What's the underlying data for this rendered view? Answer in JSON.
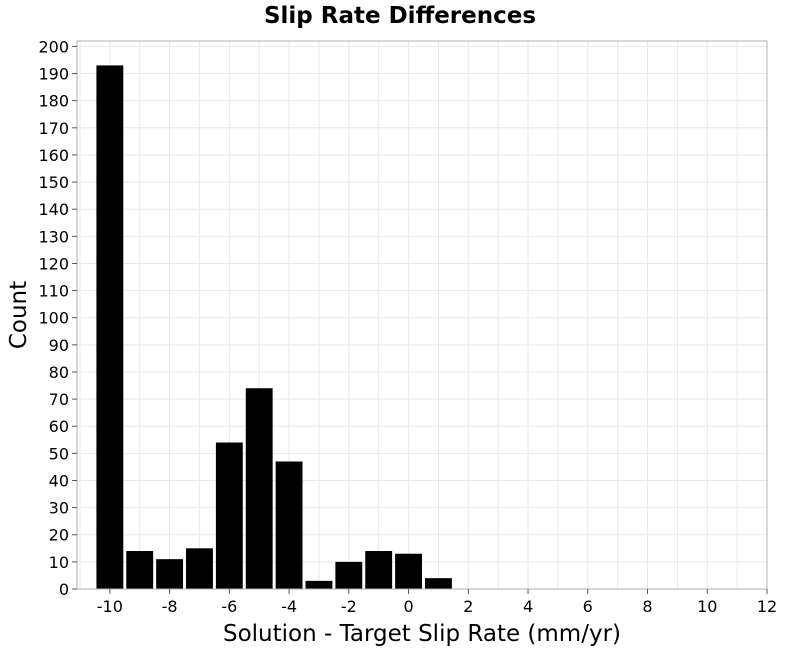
{
  "chart_data": {
    "type": "bar",
    "title": "Slip Rate Differences",
    "xlabel": "Solution - Target Slip Rate (mm/yr)",
    "ylabel": "Count",
    "xlim": [
      -11.1,
      12
    ],
    "ylim": [
      0,
      202
    ],
    "grid": true,
    "bar_color": "#000000",
    "bin_width": 1,
    "bins": [
      {
        "center": -10,
        "value": 193
      },
      {
        "center": -9,
        "value": 14
      },
      {
        "center": -8,
        "value": 11
      },
      {
        "center": -7,
        "value": 15
      },
      {
        "center": -6,
        "value": 54
      },
      {
        "center": -5,
        "value": 74
      },
      {
        "center": -4,
        "value": 47
      },
      {
        "center": -3,
        "value": 3
      },
      {
        "center": -2,
        "value": 10
      },
      {
        "center": -1,
        "value": 14
      },
      {
        "center": 0,
        "value": 13
      },
      {
        "center": 1,
        "value": 4
      }
    ],
    "x_ticks": [
      "-10",
      "-8",
      "-6",
      "-4",
      "-2",
      "0",
      "2",
      "4",
      "6",
      "8",
      "10",
      "12"
    ],
    "y_ticks": [
      "0",
      "10",
      "20",
      "30",
      "40",
      "50",
      "60",
      "70",
      "80",
      "90",
      "100",
      "110",
      "120",
      "130",
      "140",
      "150",
      "160",
      "170",
      "180",
      "190",
      "200"
    ]
  }
}
